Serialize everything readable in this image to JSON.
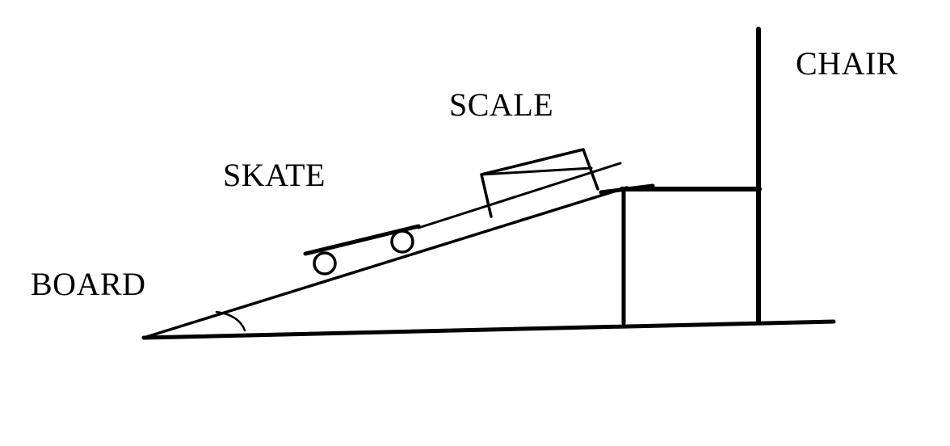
{
  "labels": {
    "board": "BOARD",
    "skate": "SKATE",
    "scale": "SCALE",
    "chair": "CHAIR"
  },
  "colors": {
    "ink": "#000000",
    "background": "#ffffff"
  }
}
